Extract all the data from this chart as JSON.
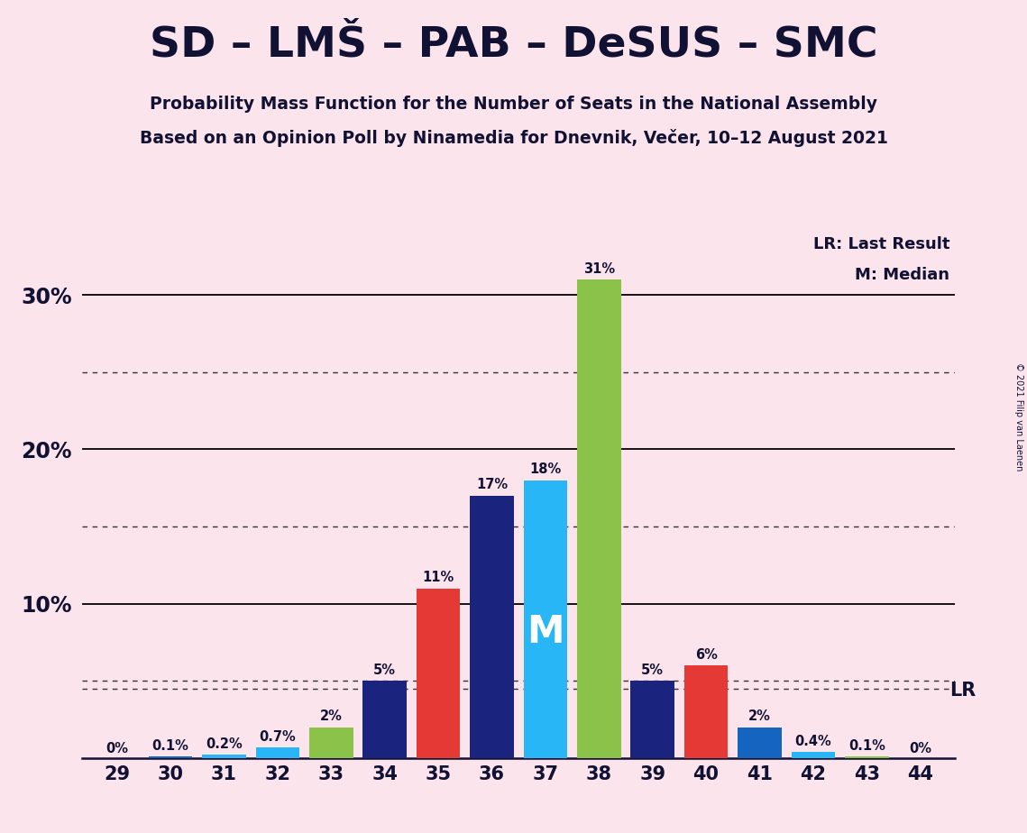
{
  "title": "SD – LMŠ – PAB – DeSUS – SMC",
  "subtitle1": "Probability Mass Function for the Number of Seats in the National Assembly",
  "subtitle2": "Based on an Opinion Poll by Ninamedia for Dnevnik, Večer, 10–12 August 2021",
  "copyright": "© 2021 Filip van Laenen",
  "background_color": "#fce4ec",
  "seats": [
    29,
    30,
    31,
    32,
    33,
    34,
    35,
    36,
    37,
    38,
    39,
    40,
    41,
    42,
    43,
    44
  ],
  "values": [
    0.0,
    0.1,
    0.2,
    0.7,
    2.0,
    5.0,
    11.0,
    17.0,
    18.0,
    31.0,
    5.0,
    6.0,
    2.0,
    0.4,
    0.1,
    0.0
  ],
  "labels": [
    "0%",
    "0.1%",
    "0.2%",
    "0.7%",
    "2%",
    "5%",
    "11%",
    "17%",
    "18%",
    "31%",
    "5%",
    "6%",
    "2%",
    "0.4%",
    "0.1%",
    "0%"
  ],
  "colors": [
    "#e53935",
    "#1565c0",
    "#29b6f6",
    "#29b6f6",
    "#8bc34a",
    "#1a237e",
    "#e53935",
    "#1a237e",
    "#29b6f6",
    "#8bc34a",
    "#1a237e",
    "#e53935",
    "#1565c0",
    "#29b6f6",
    "#8bc34a",
    "#e53935"
  ],
  "median_seat": 37,
  "lr_value": 4.5,
  "ylim_max": 34,
  "solid_lines": [
    10.0,
    20.0,
    30.0
  ],
  "dotted_lines": [
    5.0,
    15.0,
    25.0
  ],
  "legend_lr": "LR: Last Result",
  "legend_m": "M: Median",
  "title_color": "#111133"
}
